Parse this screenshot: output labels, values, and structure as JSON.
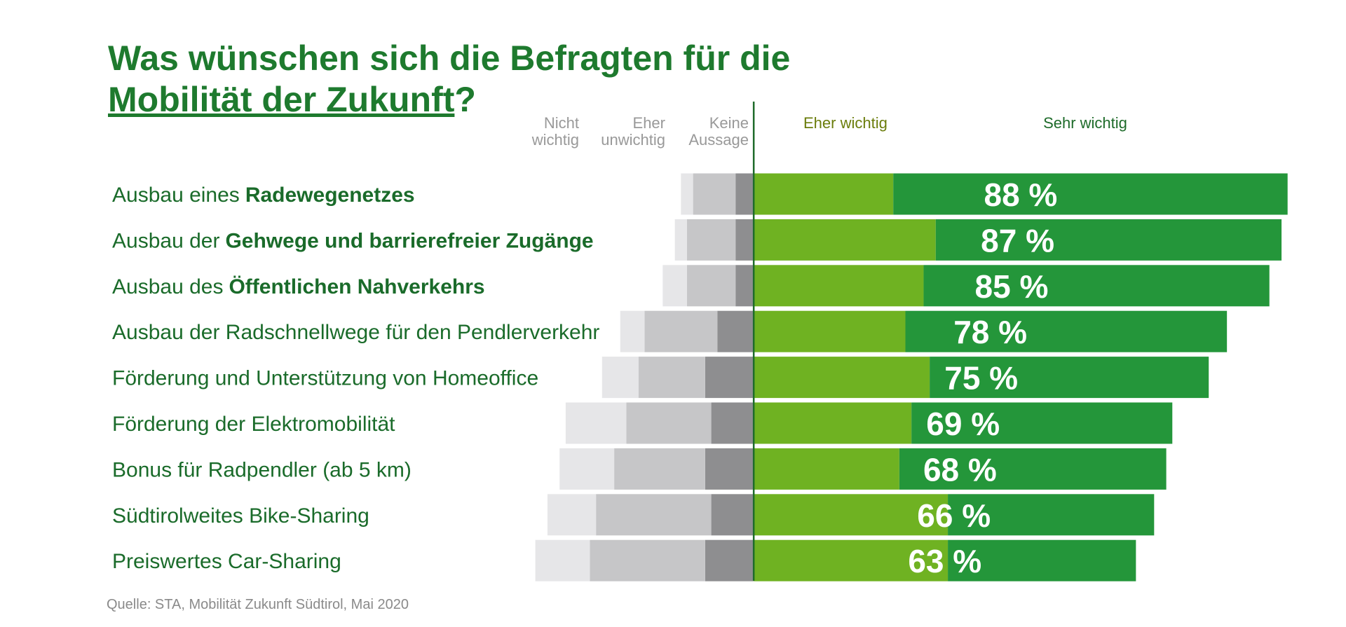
{
  "chart_data": {
    "type": "diverging-bar",
    "title": [
      "Was wünschen sich die Befragten für die",
      "Mobilität der Zukunft",
      "?"
    ],
    "source": "Quelle: STA, Mobilität Zukunft Südtirol, Mai 2020",
    "categories": [
      [
        "Ausbau eines",
        "Radewegenetzes"
      ],
      [
        "Ausbau der",
        "Gehwege und barrierefreier Zugänge"
      ],
      [
        "Ausbau des",
        "Öffentlichen Nahverkehrs"
      ],
      [
        "Ausbau der Radschnellwege für den Pendlerverkehr"
      ],
      [
        "Förderung und Unterstützung von Homeoffice"
      ],
      [
        "Förderung der Elektromobilität"
      ],
      [
        "Bonus für Radpendler (ab 5 km)"
      ],
      [
        "Südtirolweites Bike-Sharing"
      ],
      [
        "Preiswertes Car-Sharing"
      ]
    ],
    "series": [
      {
        "name": "Nicht wichtig",
        "color": "#e6e6e8",
        "label_color": "#999999",
        "direction": "left",
        "values": [
          2,
          2,
          4,
          4,
          6,
          10,
          9,
          8,
          9
        ]
      },
      {
        "name": "Eher unwichtig",
        "color": "#c6c6c8",
        "label_color": "#999999",
        "direction": "left",
        "values": [
          7,
          8,
          8,
          12,
          11,
          14,
          15,
          19,
          19
        ]
      },
      {
        "name": "Keine Aussage",
        "color": "#8e8e90",
        "label_color": "#999999",
        "direction": "left",
        "values": [
          3,
          3,
          3,
          6,
          8,
          7,
          8,
          7,
          8
        ]
      },
      {
        "name": "Eher wichtig",
        "color": "#6fb222",
        "label_color": "#6b7d0c",
        "direction": "right",
        "values": [
          23,
          30,
          28,
          25,
          29,
          26,
          24,
          32,
          32
        ]
      },
      {
        "name": "Sehr wichtig",
        "color": "#24963a",
        "label_color": "#1e6b2a",
        "direction": "right",
        "values": [
          65,
          57,
          57,
          53,
          46,
          43,
          44,
          34,
          31
        ]
      }
    ],
    "positive_totals": {
      "values": [
        88,
        87,
        85,
        78,
        75,
        69,
        68,
        66,
        63
      ],
      "value_labels": [
        "88 %",
        "87 %",
        "85 %",
        "78 %",
        "75 %",
        "69 %",
        "68 %",
        "66 %",
        "63 %"
      ]
    },
    "xlim": [
      -40,
      90
    ]
  }
}
